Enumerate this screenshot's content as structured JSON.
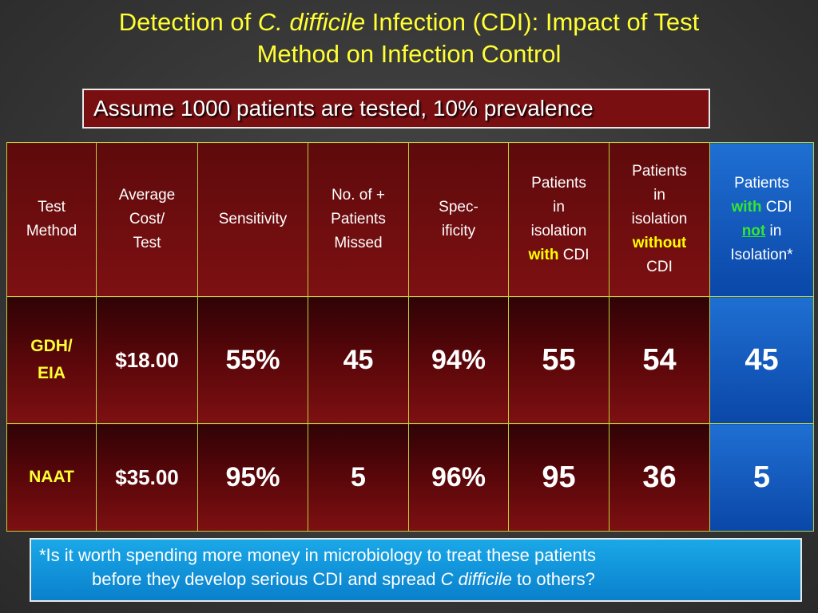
{
  "title": {
    "prefix": "Detection of ",
    "italic": "C. difficile",
    "suffix": " Infection (CDI): Impact of Test",
    "line2": "Method on Infection Control"
  },
  "assumption": "Assume 1000 patients are tested, 10% prevalence",
  "table": {
    "headers": {
      "test_method_1": "Test",
      "test_method_2": "Method",
      "cost_1": "Average",
      "cost_2": "Cost/",
      "cost_3": "Test",
      "sensitivity": "Sensitivity",
      "missed_1": "No. of +",
      "missed_2": "Patients",
      "missed_3": "Missed",
      "spec_1": "Spec-",
      "spec_2": "ificity",
      "iso_with_1": "Patients",
      "iso_with_2": "in",
      "iso_with_3": "isolation",
      "iso_with_kw": "with",
      "iso_with_4": " CDI",
      "iso_without_1": "Patients",
      "iso_without_2": "in",
      "iso_without_3": "isolation",
      "iso_without_kw": "without",
      "iso_without_4": "CDI",
      "not_iso_1": "Patients",
      "not_iso_kw1": "with",
      "not_iso_2": " CDI",
      "not_iso_kw2": "not",
      "not_iso_3": " in",
      "not_iso_4": "Isolation*"
    },
    "rows": [
      {
        "method_1": "GDH/",
        "method_2": "EIA",
        "cost": "$18.00",
        "sensitivity": "55%",
        "missed": "45",
        "specificity": "94%",
        "iso_with": "55",
        "iso_without": "54",
        "not_iso": "45"
      },
      {
        "method_1": "NAAT",
        "method_2": "",
        "cost": "$35.00",
        "sensitivity": "95%",
        "missed": "5",
        "specificity": "96%",
        "iso_with": "95",
        "iso_without": "36",
        "not_iso": "5"
      }
    ]
  },
  "note": {
    "line1": "*Is it worth spending more money in microbiology to treat these patients",
    "line2_a": "before they develop serious CDI and spread ",
    "line2_italic": "C difficile",
    "line2_b": " to others?"
  }
}
